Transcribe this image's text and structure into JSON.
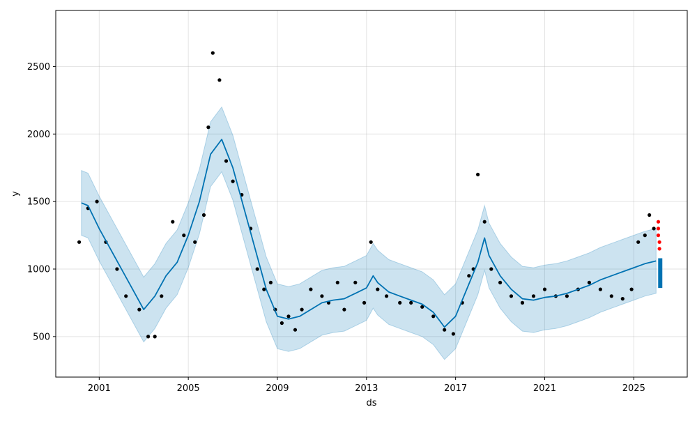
{
  "chart_data": {
    "type": "line",
    "title": "",
    "xlabel": "ds",
    "ylabel": "y",
    "x_ticks": [
      "2001",
      "2005",
      "2009",
      "2013",
      "2017",
      "2021",
      "2025"
    ],
    "y_ticks": [
      500,
      1000,
      1500,
      2000,
      2500
    ],
    "xlim": [
      1999.05,
      2027.4
    ],
    "ylim": [
      200,
      2915
    ],
    "grid": true,
    "legend": "none",
    "colors": {
      "forecast_line": "#0072B2",
      "uncertainty_band": "#0072B2",
      "observed_points": "#000000",
      "outlier_points": "#ff0000"
    },
    "series": [
      {
        "kind": "forecast",
        "x": [
          2000.2,
          2000.5,
          2001.0,
          2001.5,
          2002.0,
          2002.5,
          2003.0,
          2003.5,
          2004.0,
          2004.5,
          2005.0,
          2005.5,
          2006.0,
          2006.5,
          2007.0,
          2007.5,
          2008.0,
          2008.5,
          2009.0,
          2009.5,
          2010.0,
          2010.5,
          2011.0,
          2011.5,
          2012.0,
          2012.5,
          2013.0,
          2013.3,
          2013.5,
          2014.0,
          2014.5,
          2015.0,
          2015.5,
          2016.0,
          2016.5,
          2017.0,
          2017.5,
          2018.0,
          2018.3,
          2018.5,
          2019.0,
          2019.5,
          2020.0,
          2020.5,
          2021.0,
          2021.5,
          2022.0,
          2022.5,
          2023.0,
          2023.5,
          2024.0,
          2024.5,
          2025.0,
          2025.5,
          2026.0
        ],
        "yhat": [
          1490,
          1470,
          1300,
          1150,
          1000,
          850,
          700,
          800,
          950,
          1050,
          1250,
          1500,
          1850,
          1960,
          1750,
          1450,
          1150,
          850,
          650,
          630,
          650,
          700,
          750,
          770,
          780,
          820,
          860,
          950,
          900,
          830,
          800,
          770,
          740,
          680,
          570,
          650,
          850,
          1050,
          1230,
          1100,
          950,
          850,
          780,
          770,
          790,
          800,
          820,
          850,
          880,
          920,
          950,
          980,
          1010,
          1040,
          1060
        ],
        "lower": [
          1250,
          1230,
          1060,
          910,
          760,
          610,
          460,
          560,
          710,
          810,
          1010,
          1260,
          1610,
          1720,
          1510,
          1210,
          910,
          610,
          410,
          390,
          410,
          460,
          510,
          530,
          540,
          580,
          620,
          710,
          660,
          590,
          560,
          530,
          500,
          440,
          330,
          410,
          610,
          810,
          990,
          860,
          710,
          610,
          540,
          530,
          550,
          560,
          580,
          610,
          640,
          680,
          710,
          740,
          770,
          800,
          820
        ],
        "upper": [
          1730,
          1710,
          1540,
          1390,
          1240,
          1090,
          940,
          1040,
          1190,
          1290,
          1490,
          1740,
          2090,
          2200,
          1990,
          1690,
          1390,
          1090,
          890,
          870,
          890,
          940,
          990,
          1010,
          1020,
          1060,
          1100,
          1190,
          1140,
          1070,
          1040,
          1010,
          980,
          920,
          810,
          890,
          1090,
          1290,
          1470,
          1340,
          1190,
          1090,
          1020,
          1010,
          1030,
          1040,
          1060,
          1090,
          1120,
          1160,
          1190,
          1220,
          1250,
          1280,
          1300
        ]
      },
      {
        "kind": "observed",
        "x": [
          2000.1,
          2000.5,
          2000.9,
          2001.3,
          2001.8,
          2002.2,
          2002.8,
          2003.2,
          2003.5,
          2003.8,
          2004.3,
          2004.8,
          2005.3,
          2005.7,
          2005.9,
          2006.1,
          2006.4,
          2006.7,
          2007.0,
          2007.4,
          2007.8,
          2008.1,
          2008.4,
          2008.7,
          2008.9,
          2009.2,
          2009.5,
          2009.8,
          2010.1,
          2010.5,
          2011.0,
          2011.3,
          2011.7,
          2012.0,
          2012.5,
          2012.9,
          2013.2,
          2013.5,
          2013.9,
          2014.5,
          2015.0,
          2015.5,
          2016.0,
          2016.5,
          2016.9,
          2017.3,
          2017.6,
          2017.8,
          2018.0,
          2018.3,
          2018.6,
          2019.0,
          2019.5,
          2020.0,
          2020.5,
          2021.0,
          2021.5,
          2022.0,
          2022.5,
          2023.0,
          2023.5,
          2024.0,
          2024.5,
          2024.9,
          2025.2,
          2025.5,
          2025.7,
          2025.9
        ],
        "y": [
          1200,
          1450,
          1500,
          1200,
          1000,
          800,
          700,
          500,
          500,
          800,
          1350,
          1250,
          1200,
          1400,
          2050,
          2600,
          2400,
          1800,
          1650,
          1550,
          1300,
          1000,
          850,
          900,
          700,
          600,
          650,
          550,
          700,
          850,
          800,
          750,
          900,
          700,
          900,
          750,
          1200,
          850,
          800,
          750,
          750,
          720,
          650,
          550,
          520,
          750,
          950,
          1000,
          1700,
          1350,
          1000,
          900,
          800,
          750,
          800,
          850,
          800,
          800,
          850,
          900,
          850,
          800,
          780,
          850,
          1200,
          1250,
          1400,
          1300
        ]
      },
      {
        "kind": "outliers",
        "x": [
          2026.1,
          2026.1,
          2026.1,
          2026.15,
          2026.15
        ],
        "y": [
          1350,
          1300,
          1250,
          1200,
          1150
        ]
      }
    ]
  }
}
